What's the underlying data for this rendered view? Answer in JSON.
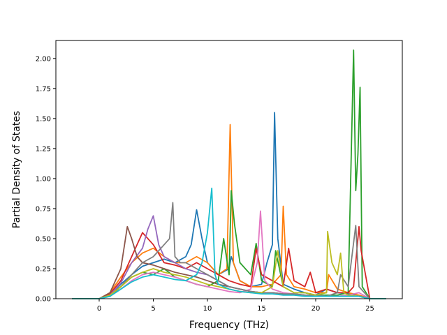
{
  "chart_data": {
    "type": "line",
    "title": "",
    "xlabel": "Frequency (THz)",
    "ylabel": "Partial Density of States",
    "xlim": [
      -4,
      28
    ],
    "ylim": [
      0,
      2.15
    ],
    "xticks": [
      0,
      5,
      10,
      15,
      20,
      25
    ],
    "yticks": [
      0.0,
      0.25,
      0.5,
      0.75,
      1.0,
      1.25,
      1.5,
      1.75,
      2.0
    ],
    "xtick_labels": [
      "0",
      "5",
      "10",
      "15",
      "20",
      "25"
    ],
    "ytick_labels": [
      "0.00",
      "0.25",
      "0.50",
      "0.75",
      "1.00",
      "1.25",
      "1.50",
      "1.75",
      "2.00"
    ],
    "grid": false,
    "legend": "none",
    "series": [
      {
        "color": "#1f77b4",
        "x": [
          -2.5,
          0,
          1,
          2,
          3,
          4,
          5,
          6,
          7,
          8,
          8.5,
          9,
          9.5,
          10,
          11,
          12,
          12.2,
          13,
          14,
          15,
          15.5,
          16,
          16.2,
          16.5,
          17,
          18,
          19,
          20,
          21,
          22,
          23,
          24,
          25,
          26.5
        ],
        "y": [
          0,
          0,
          0.03,
          0.12,
          0.2,
          0.27,
          0.3,
          0.33,
          0.3,
          0.35,
          0.45,
          0.74,
          0.5,
          0.3,
          0.2,
          0.25,
          0.35,
          0.15,
          0.1,
          0.12,
          0.3,
          0.45,
          1.55,
          0.5,
          0.12,
          0.08,
          0.05,
          0.03,
          0.08,
          0.05,
          0.04,
          0.03,
          0,
          0
        ]
      },
      {
        "color": "#ff7f0e",
        "x": [
          -2.5,
          0,
          1,
          2,
          3,
          4,
          5,
          6,
          7,
          8,
          9,
          10,
          11,
          11.8,
          12.1,
          12.4,
          13,
          14,
          15,
          16,
          16.8,
          17,
          17.3,
          18,
          19,
          20,
          21,
          21.2,
          22,
          23,
          24,
          25,
          26.5
        ],
        "y": [
          0,
          0,
          0.05,
          0.18,
          0.3,
          0.38,
          0.42,
          0.35,
          0.3,
          0.3,
          0.35,
          0.3,
          0.2,
          0.25,
          1.45,
          0.3,
          0.15,
          0.1,
          0.1,
          0.12,
          0.2,
          0.77,
          0.2,
          0.1,
          0.08,
          0.05,
          0.05,
          0.2,
          0.08,
          0.05,
          0.03,
          0,
          0
        ]
      },
      {
        "color": "#2ca02c",
        "x": [
          -2.5,
          0,
          1,
          2,
          3,
          4,
          5,
          6,
          7,
          8,
          9,
          10,
          11,
          11.5,
          12,
          12.2,
          12.5,
          13,
          14,
          14.5,
          15,
          16,
          16.3,
          17,
          18,
          19,
          20,
          21,
          22,
          23,
          23.5,
          23.7,
          23.9,
          24.1,
          24.3,
          25,
          26.5
        ],
        "y": [
          0,
          0,
          0.02,
          0.1,
          0.18,
          0.22,
          0.2,
          0.25,
          0.18,
          0.15,
          0.12,
          0.1,
          0.15,
          0.5,
          0.2,
          0.9,
          0.62,
          0.3,
          0.2,
          0.46,
          0.15,
          0.1,
          0.4,
          0.1,
          0.05,
          0.05,
          0.03,
          0.03,
          0.03,
          0.05,
          2.07,
          0.9,
          1.2,
          1.76,
          0.1,
          0,
          0
        ]
      },
      {
        "color": "#d62728",
        "x": [
          -2.5,
          0,
          1,
          2,
          3,
          4,
          5,
          6,
          7,
          8,
          9,
          10,
          11,
          12,
          13,
          14,
          14.5,
          15,
          16,
          17,
          17.5,
          18,
          19,
          19.5,
          20,
          21,
          22,
          23,
          23.5,
          24,
          24.2,
          25,
          26.5
        ],
        "y": [
          0,
          0,
          0.04,
          0.15,
          0.35,
          0.55,
          0.45,
          0.3,
          0.28,
          0.25,
          0.3,
          0.25,
          0.2,
          0.15,
          0.12,
          0.1,
          0.42,
          0.2,
          0.15,
          0.1,
          0.42,
          0.15,
          0.1,
          0.22,
          0.05,
          0.08,
          0.05,
          0.05,
          0.1,
          0.6,
          0.4,
          0,
          0
        ]
      },
      {
        "color": "#9467bd",
        "x": [
          -2.5,
          0,
          1,
          2,
          3,
          4,
          4.5,
          5,
          5.5,
          6,
          7,
          8,
          9,
          10,
          11,
          12,
          13,
          14,
          15,
          16,
          17,
          18,
          19,
          20,
          21,
          22,
          23,
          24,
          25,
          26.5
        ],
        "y": [
          0,
          0,
          0.03,
          0.13,
          0.3,
          0.42,
          0.58,
          0.69,
          0.45,
          0.35,
          0.3,
          0.25,
          0.22,
          0.2,
          0.15,
          0.1,
          0.08,
          0.06,
          0.05,
          0.05,
          0.04,
          0.04,
          0.03,
          0.03,
          0.02,
          0.02,
          0.02,
          0.02,
          0,
          0
        ]
      },
      {
        "color": "#8c564b",
        "x": [
          -2.5,
          0,
          1,
          2,
          2.6,
          3,
          3.5,
          4,
          5,
          6,
          7,
          8,
          9,
          10,
          11,
          12,
          13,
          14,
          15,
          16,
          17,
          18,
          19,
          20,
          21,
          22,
          23,
          24,
          25,
          26.5
        ],
        "y": [
          0,
          0,
          0.05,
          0.25,
          0.6,
          0.5,
          0.35,
          0.3,
          0.28,
          0.25,
          0.22,
          0.2,
          0.18,
          0.15,
          0.12,
          0.1,
          0.08,
          0.06,
          0.05,
          0.05,
          0.04,
          0.04,
          0.03,
          0.03,
          0.02,
          0.02,
          0.02,
          0.02,
          0,
          0
        ]
      },
      {
        "color": "#e377c2",
        "x": [
          -2.5,
          0,
          1,
          2,
          3,
          4,
          5,
          6,
          7,
          8,
          9,
          10,
          11,
          12,
          13,
          14,
          14.6,
          14.9,
          15.3,
          16,
          17,
          18,
          19,
          20,
          21,
          22,
          23,
          24,
          25,
          26.5
        ],
        "y": [
          0,
          0,
          0.02,
          0.08,
          0.15,
          0.2,
          0.22,
          0.2,
          0.18,
          0.15,
          0.12,
          0.1,
          0.08,
          0.06,
          0.05,
          0.08,
          0.3,
          0.73,
          0.15,
          0.08,
          0.05,
          0.04,
          0.03,
          0.02,
          0.02,
          0.02,
          0.03,
          0.05,
          0,
          0
        ]
      },
      {
        "color": "#7f7f7f",
        "x": [
          -2.5,
          0,
          1,
          2,
          3,
          4,
          5,
          6,
          6.5,
          6.8,
          7,
          7.5,
          8,
          9,
          10,
          11,
          12,
          13,
          14,
          15,
          16,
          17,
          18,
          19,
          20,
          21,
          22,
          22.3,
          23,
          23.7,
          24,
          25,
          26.5
        ],
        "y": [
          0,
          0,
          0.03,
          0.1,
          0.2,
          0.3,
          0.35,
          0.45,
          0.5,
          0.8,
          0.35,
          0.3,
          0.3,
          0.25,
          0.2,
          0.15,
          0.1,
          0.08,
          0.06,
          0.05,
          0.05,
          0.04,
          0.04,
          0.03,
          0.03,
          0.02,
          0.05,
          0.2,
          0.1,
          0.61,
          0.1,
          0,
          0
        ]
      },
      {
        "color": "#bcbd22",
        "x": [
          -2.5,
          0,
          1,
          2,
          3,
          4,
          5,
          6,
          7,
          8,
          9,
          10,
          11,
          12,
          13,
          14,
          15,
          16,
          16.5,
          17,
          18,
          19,
          20,
          21,
          21.1,
          21.5,
          22,
          22.3,
          22.6,
          23,
          24,
          25,
          26.5
        ],
        "y": [
          0,
          0,
          0.03,
          0.1,
          0.18,
          0.22,
          0.25,
          0.22,
          0.2,
          0.18,
          0.15,
          0.12,
          0.1,
          0.08,
          0.06,
          0.05,
          0.05,
          0.1,
          0.4,
          0.1,
          0.05,
          0.05,
          0.03,
          0.05,
          0.56,
          0.3,
          0.2,
          0.38,
          0.05,
          0.03,
          0.02,
          0,
          0
        ]
      },
      {
        "color": "#17becf",
        "x": [
          -2.5,
          0,
          1,
          2,
          3,
          4,
          5,
          6,
          7,
          8,
          9,
          9.5,
          10,
          10.4,
          10.7,
          11,
          12,
          13,
          14,
          15,
          16,
          17,
          18,
          19,
          20,
          21,
          22,
          23,
          24,
          25,
          26.5
        ],
        "y": [
          0,
          0,
          0.02,
          0.08,
          0.14,
          0.18,
          0.2,
          0.18,
          0.16,
          0.15,
          0.2,
          0.3,
          0.55,
          0.92,
          0.2,
          0.12,
          0.08,
          0.06,
          0.05,
          0.04,
          0.04,
          0.03,
          0.03,
          0.02,
          0.02,
          0.02,
          0.02,
          0.02,
          0.02,
          0,
          0
        ]
      }
    ]
  }
}
